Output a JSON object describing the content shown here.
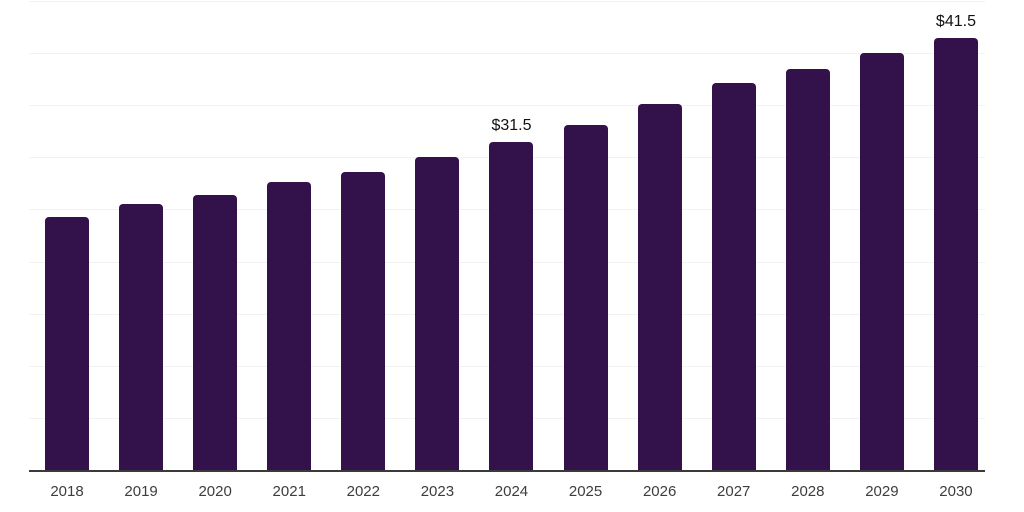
{
  "chart_data": {
    "type": "bar",
    "title": "",
    "xlabel": "",
    "ylabel": "",
    "categories": [
      "2018",
      "2019",
      "2020",
      "2021",
      "2022",
      "2023",
      "2024",
      "2025",
      "2026",
      "2027",
      "2028",
      "2029",
      "2030"
    ],
    "values": [
      24.3,
      25.5,
      26.4,
      27.6,
      28.6,
      30.0,
      31.5,
      33.1,
      35.1,
      37.1,
      38.5,
      40.0,
      41.5
    ],
    "point_labels": [
      "",
      "",
      "",
      "",
      "",
      "",
      "$31.5",
      "",
      "",
      "",
      "",
      "",
      "$41.5"
    ],
    "currency_prefix": "$",
    "ylim": [
      0,
      45.1
    ],
    "grid": {
      "visible": true,
      "step": 5,
      "max": 45
    },
    "legend_position": "none",
    "colors": {
      "bar": "#33114A",
      "axis_line": "#3a3a3a",
      "gridline": "#f2f2f2",
      "value_label_text": "#111111",
      "tick_label_text": "#3d3d3d",
      "background": "#ffffff"
    }
  }
}
